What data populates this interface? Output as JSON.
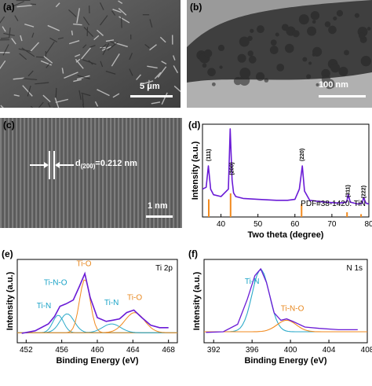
{
  "panels": {
    "a": {
      "label": "(a)",
      "scale_bar": "5 μm"
    },
    "b": {
      "label": "(b)",
      "scale_bar": "100 nm"
    },
    "c": {
      "label": "(c)",
      "scale_bar": "1 nm",
      "d_main": "d",
      "d_sub": "(200)",
      "d_value": "=0.212 nm"
    },
    "d": {
      "label": "(d)",
      "reference": "PDF#38-1420: TiN"
    },
    "e": {
      "label": "(e)",
      "spectrum": "Ti 2p"
    },
    "f": {
      "label": "(f)",
      "spectrum": "N 1s"
    }
  },
  "colors": {
    "xrd_line": "#6a1bd6",
    "ref_bars": "#f28a1e",
    "xps_envelope": "#6a1bd6",
    "fit_tin": "#2aa9c9",
    "fit_tio": "#f28a1e",
    "fit_tino": "#2aa9c9",
    "label_tin": "#1aa3c7",
    "label_tio": "#e8881f"
  },
  "chart_data": [
    {
      "id": "d",
      "type": "line",
      "xlabel": "Two theta (degree)",
      "ylabel": "Intensity (a.u.)",
      "xlim": [
        35,
        80
      ],
      "xticks": [
        40,
        50,
        60,
        70,
        80
      ],
      "x": [
        35,
        36,
        36.6,
        37.2,
        38,
        40,
        42,
        42.5,
        43.0,
        43.4,
        44,
        46,
        50,
        55,
        58,
        60,
        61.2,
        62.0,
        62.6,
        64,
        68,
        72,
        74,
        74.4,
        75,
        77,
        78.2,
        78.6,
        79.2,
        80
      ],
      "y": [
        0.3,
        0.32,
        0.55,
        0.3,
        0.24,
        0.22,
        0.3,
        0.95,
        0.4,
        0.26,
        0.22,
        0.2,
        0.19,
        0.18,
        0.18,
        0.19,
        0.3,
        0.55,
        0.28,
        0.18,
        0.16,
        0.15,
        0.16,
        0.24,
        0.16,
        0.14,
        0.15,
        0.21,
        0.15,
        0.14
      ],
      "peak_labels": [
        {
          "x": 36.7,
          "text": "(111)"
        },
        {
          "x": 43.0,
          "text": "(200)"
        },
        {
          "x": 62.0,
          "text": "(220)"
        },
        {
          "x": 74.4,
          "text": "(311)"
        },
        {
          "x": 78.6,
          "text": "(222)"
        }
      ],
      "reference": {
        "name": "PDF#38-1420: TiN",
        "x": [
          36.7,
          42.6,
          61.8,
          74.1,
          77.9
        ],
        "intensity": [
          0.75,
          1.0,
          0.55,
          0.2,
          0.12
        ]
      }
    },
    {
      "id": "e",
      "type": "line",
      "xlabel": "Binding Energy (eV)",
      "ylabel": "Intensity (a.u.)",
      "xlim": [
        451,
        469
      ],
      "xticks": [
        452,
        456,
        460,
        464,
        468
      ],
      "x": [
        451.5,
        453,
        454.5,
        455.2,
        455.8,
        456.5,
        457.3,
        458.0,
        458.6,
        459.2,
        460,
        461,
        461.8,
        462.5,
        463.3,
        464.1,
        465,
        466,
        467,
        468
      ],
      "y": [
        0.05,
        0.09,
        0.2,
        0.32,
        0.48,
        0.52,
        0.58,
        0.8,
        1.0,
        0.62,
        0.3,
        0.24,
        0.26,
        0.28,
        0.38,
        0.42,
        0.3,
        0.18,
        0.14,
        0.14
      ],
      "labels": [
        {
          "text": "Ti-O",
          "x": 458.5,
          "y": 1.12,
          "color": "#e8881f"
        },
        {
          "text": "Ti-N-O",
          "x": 455.3,
          "y": 0.82,
          "color": "#1aa3c7"
        },
        {
          "text": "Ti-N",
          "x": 454.0,
          "y": 0.45,
          "color": "#1aa3c7"
        },
        {
          "text": "Ti-N",
          "x": 461.6,
          "y": 0.5,
          "color": "#1aa3c7"
        },
        {
          "text": "Ti-O",
          "x": 464.2,
          "y": 0.58,
          "color": "#e8881f"
        }
      ]
    },
    {
      "id": "f",
      "type": "line",
      "xlabel": "Binding Energy (eV)",
      "ylabel": "Intensity (a.u.)",
      "xlim": [
        391,
        408
      ],
      "xticks": [
        392,
        396,
        400,
        404,
        408
      ],
      "x": [
        391.2,
        393,
        394.5,
        395.5,
        396.3,
        396.9,
        397.5,
        398.3,
        399.0,
        399.6,
        400.3,
        401.5,
        403,
        405,
        407
      ],
      "y": [
        0.06,
        0.07,
        0.18,
        0.55,
        0.9,
        1.0,
        0.8,
        0.35,
        0.24,
        0.26,
        0.22,
        0.14,
        0.12,
        0.1,
        0.1
      ],
      "labels": [
        {
          "text": "Ti-N",
          "x": 396.0,
          "y": 0.78,
          "color": "#1aa3c7"
        },
        {
          "text": "Ti-N-O",
          "x": 400.2,
          "y": 0.38,
          "color": "#e8881f"
        }
      ]
    }
  ]
}
